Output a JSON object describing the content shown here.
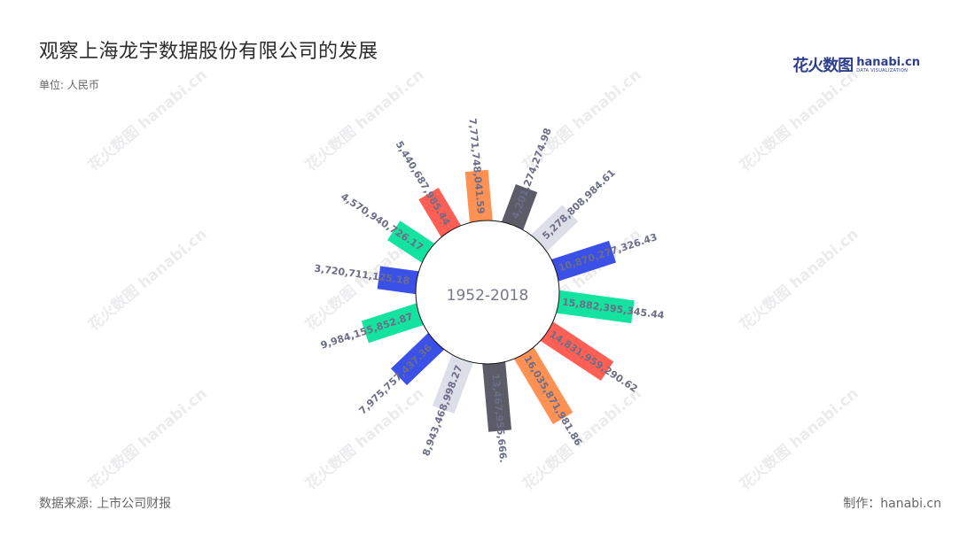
{
  "title": "观察上海龙宇数据股份有限公司的发展",
  "unit": "单位: 人民币",
  "source": "数据来源: 上市公司财报",
  "maker": "制作：hanabi.cn",
  "logo": {
    "cn": "花火数图",
    "en": "hanabi.cn",
    "tagline": "DATA VISUALIZATION"
  },
  "watermark": "花火数图 hanabi.cn",
  "colors": [
    "#3b50e6",
    "#14e3a0",
    "#ff5f55",
    "#ff9155",
    "#5b5c68",
    "#dcdfe8"
  ],
  "chart_data": {
    "type": "bar",
    "subtype": "radial",
    "center_label": "1952-2018",
    "values": [
      {
        "label": "10,870,277,326.43",
        "value": 10870277326.43,
        "color": "#3b50e6"
      },
      {
        "label": "15,882,395,345.44",
        "value": 15882395345.44,
        "color": "#14e3a0"
      },
      {
        "label": "14,831,959,290.62",
        "value": 14831959290.62,
        "color": "#ff5f55"
      },
      {
        "label": "16,035,871,981.86",
        "value": 16035871981.86,
        "color": "#ff9155"
      },
      {
        "label": "13,467,955,666.",
        "value": 13467955666,
        "color": "#5b5c68"
      },
      {
        "label": "8,943,468,998.27",
        "value": 8943468998.27,
        "color": "#dcdfe8"
      },
      {
        "label": "7,975,757,437.36",
        "value": 7975757437.36,
        "color": "#3b50e6"
      },
      {
        "label": "9,984,155,852.87",
        "value": 9984155852.87,
        "color": "#14e3a0"
      },
      {
        "label": "3,720,711,125.18",
        "value": 3720711125.18,
        "color": "#3b50e6"
      },
      {
        "label": "4,570,940,726.17",
        "value": 4570940726.17,
        "color": "#14e3a0"
      },
      {
        "label": "5,440,687,985.44",
        "value": 5440687985.44,
        "color": "#ff5f55"
      },
      {
        "label": "7,771,748,041.59",
        "value": 7771748041.59,
        "color": "#ff9155"
      },
      {
        "label": "4,201,274,274.98",
        "value": 4201274274.98,
        "color": "#5b5c68"
      },
      {
        "label": "5,278,808,984.61",
        "value": 5278808984.61,
        "color": "#dcdfe8"
      }
    ]
  }
}
